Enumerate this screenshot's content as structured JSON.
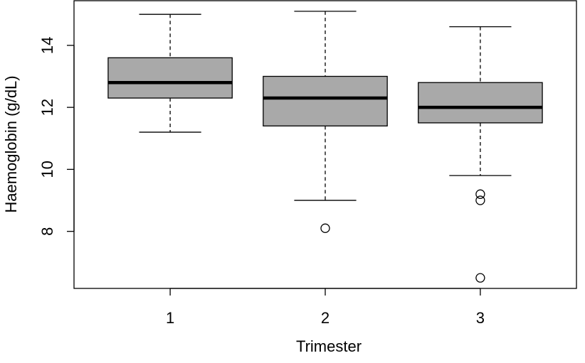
{
  "chart_data": {
    "type": "box",
    "x_label": "Trimester",
    "y_label": "Haemoglobin (g/dL)",
    "categories": [
      "1",
      "2",
      "3"
    ],
    "color": "#a9a9a9",
    "boxes": [
      {
        "whislo": 11.2,
        "q1": 12.3,
        "med": 12.8,
        "q3": 13.6,
        "whishi": 15.0,
        "outliers": []
      },
      {
        "whislo": 9.0,
        "q1": 11.4,
        "med": 12.3,
        "q3": 13.0,
        "whishi": 15.1,
        "outliers": [
          8.1
        ]
      },
      {
        "whislo": 9.8,
        "q1": 11.5,
        "med": 12.0,
        "q3": 12.8,
        "whishi": 14.6,
        "outliers": [
          9.2,
          9.0,
          6.5
        ]
      }
    ],
    "xlim": [
      0.38,
      3.62
    ],
    "ylim": [
      6.16,
      15.44
    ],
    "yticks": [
      8,
      10,
      12,
      14
    ]
  }
}
